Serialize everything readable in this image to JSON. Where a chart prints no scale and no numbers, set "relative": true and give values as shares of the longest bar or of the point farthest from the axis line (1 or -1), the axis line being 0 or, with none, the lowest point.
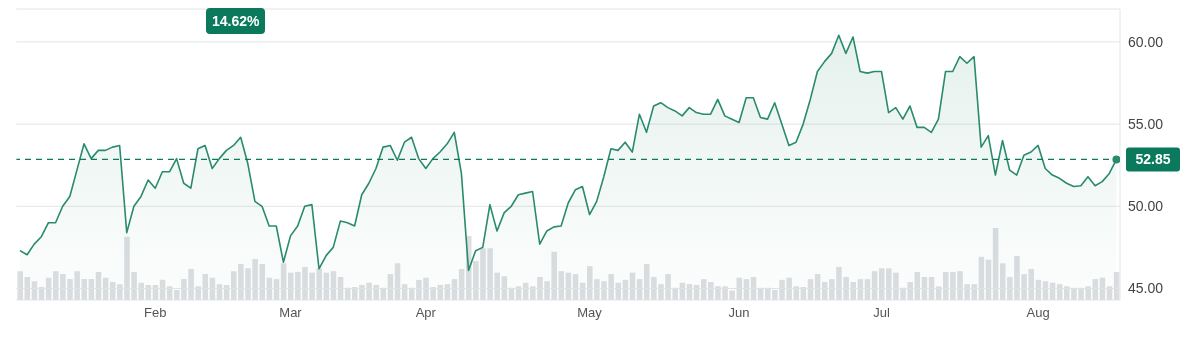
{
  "chart_data": [
    {
      "type": "area",
      "categories": [
        null,
        null,
        null,
        null,
        null,
        null,
        null,
        null,
        null,
        null,
        null,
        null,
        null,
        null,
        null,
        null,
        null,
        null,
        null,
        "Feb",
        null,
        null,
        null,
        null,
        null,
        null,
        null,
        null,
        null,
        null,
        null,
        null,
        null,
        null,
        null,
        null,
        null,
        null,
        "Mar",
        null,
        null,
        null,
        null,
        null,
        null,
        null,
        null,
        null,
        null,
        null,
        null,
        null,
        null,
        null,
        null,
        null,
        null,
        "Apr",
        null,
        null,
        null,
        null,
        null,
        null,
        null,
        null,
        null,
        null,
        null,
        null,
        null,
        null,
        null,
        null,
        null,
        null,
        null,
        null,
        null,
        null,
        "May",
        null,
        null,
        null,
        null,
        null,
        null,
        null,
        null,
        null,
        null,
        null,
        null,
        null,
        null,
        null,
        null,
        null,
        null,
        null,
        null,
        "Jun",
        null,
        null,
        null,
        null,
        null,
        null,
        null,
        null,
        null,
        null,
        null,
        null,
        null,
        null,
        null,
        null,
        null,
        null,
        null,
        "Jul",
        null,
        null,
        null,
        null,
        null,
        null,
        null,
        null,
        null,
        null,
        null,
        null,
        null,
        null,
        null,
        null,
        null,
        null,
        null,
        null,
        null,
        "Aug",
        null,
        null,
        null,
        null,
        null,
        null,
        null,
        null,
        null,
        null,
        null
      ],
      "series": [
        {
          "color": "#2a8a6e",
          "values": [
            47.3,
            47.05,
            47.7,
            48.15,
            49.0,
            49.0,
            50.0,
            50.6,
            52.2,
            53.8,
            52.9,
            53.4,
            53.4,
            53.6,
            53.7,
            48.4,
            50.0,
            50.6,
            51.6,
            51.1,
            52.1,
            52.1,
            52.9,
            51.4,
            51.1,
            53.5,
            53.7,
            52.3,
            52.9,
            53.4,
            53.7,
            54.2,
            52.6,
            50.3,
            50.0,
            48.8,
            48.8,
            46.6,
            48.2,
            48.8,
            50.0,
            50.1,
            46.2,
            47.0,
            47.5,
            49.1,
            49.0,
            48.8,
            50.7,
            51.4,
            52.3,
            53.6,
            53.7,
            52.8,
            53.9,
            54.2,
            52.9,
            52.3,
            52.9,
            53.3,
            53.8,
            54.5,
            52.0,
            46.1,
            47.3,
            47.5,
            50.1,
            48.5,
            49.6,
            50.0,
            50.7,
            50.8,
            50.9,
            47.7,
            48.5,
            48.75,
            48.8,
            50.2,
            51.0,
            51.2,
            49.5,
            50.3,
            51.8,
            53.5,
            53.4,
            53.9,
            53.3,
            55.6,
            54.5,
            56.1,
            56.3,
            56.0,
            55.8,
            55.5,
            56.0,
            55.7,
            55.6,
            55.6,
            56.5,
            55.5,
            55.3,
            55.1,
            56.6,
            56.6,
            55.4,
            55.3,
            56.3,
            55.0,
            53.7,
            53.9,
            55.0,
            56.5,
            58.2,
            58.8,
            59.3,
            60.4,
            59.3,
            60.3,
            58.2,
            58.1,
            58.2,
            58.2,
            55.7,
            56.0,
            55.3,
            56.1,
            54.8,
            54.8,
            54.5,
            55.3,
            58.2,
            58.2,
            59.1,
            58.7,
            59.1,
            53.6,
            54.3,
            51.9,
            54.0,
            52.2,
            51.9,
            53.1,
            53.3,
            53.7,
            52.3,
            51.9,
            51.7,
            51.4,
            51.2,
            51.25,
            51.8,
            51.25,
            51.5,
            52.0,
            52.85
          ]
        }
      ],
      "ylim": [
        44.3,
        62
      ],
      "yticks": [
        {
          "value": 45,
          "label": "45.00"
        },
        {
          "value": 50,
          "label": "50.00"
        },
        {
          "value": 55,
          "label": "55.00"
        },
        {
          "value": 60,
          "label": "60.00"
        }
      ],
      "grid": "y",
      "ref_lines": [
        {
          "axis": "y",
          "value": 52.85,
          "label": "52.85",
          "color": "#0b7a5c",
          "line_style": "dashed"
        }
      ],
      "annotations": [
        "14.62%"
      ]
    },
    {
      "type": "bar",
      "relative": true,
      "color": "#dcdee1",
      "categories": [
        null,
        null,
        null,
        null,
        null,
        null,
        null,
        null,
        null,
        null,
        null,
        null,
        null,
        null,
        null,
        null,
        null,
        null,
        null,
        null,
        null,
        null,
        null,
        null,
        null,
        null,
        null,
        null,
        null,
        null,
        null,
        null,
        null,
        null,
        null,
        null,
        null,
        null,
        null,
        null,
        null,
        null,
        null,
        null,
        null,
        null,
        null,
        null,
        null,
        null,
        null,
        null,
        null,
        null,
        null,
        null,
        null,
        null,
        null,
        null,
        null,
        null,
        null,
        null,
        null,
        null,
        null,
        null,
        null,
        null,
        null,
        null,
        null,
        null,
        null,
        null,
        null,
        null,
        null,
        null,
        null,
        null,
        null,
        null,
        null,
        null,
        null,
        null,
        null,
        null,
        null,
        null,
        null,
        null,
        null,
        null,
        null,
        null,
        null,
        null,
        null,
        null,
        null,
        null,
        null,
        null,
        null,
        null,
        null,
        null,
        null,
        null,
        null,
        null,
        null,
        null,
        null,
        null,
        null,
        null,
        null,
        null,
        null,
        null,
        null,
        null,
        null,
        null,
        null,
        null,
        null,
        null,
        null,
        null,
        null,
        null,
        null,
        null,
        null,
        null,
        null,
        null,
        null,
        null,
        null,
        null,
        null,
        null,
        null,
        null,
        null,
        null,
        null,
        null,
        null
      ],
      "values": [
        0.4,
        0.32,
        0.26,
        0.18,
        0.31,
        0.4,
        0.36,
        0.29,
        0.4,
        0.29,
        0.29,
        0.39,
        0.31,
        0.25,
        0.22,
        0.88,
        0.39,
        0.24,
        0.21,
        0.21,
        0.28,
        0.19,
        0.14,
        0.29,
        0.43,
        0.19,
        0.36,
        0.31,
        0.22,
        0.21,
        0.4,
        0.5,
        0.44,
        0.57,
        0.5,
        0.31,
        0.29,
        0.51,
        0.38,
        0.39,
        0.46,
        0.38,
        0.44,
        0.38,
        0.4,
        0.32,
        0.17,
        0.18,
        0.21,
        0.24,
        0.21,
        0.17,
        0.36,
        0.51,
        0.22,
        0.17,
        0.28,
        0.31,
        0.18,
        0.21,
        0.22,
        0.29,
        0.43,
        0.89,
        0.54,
        0.72,
        0.72,
        0.38,
        0.33,
        0.17,
        0.19,
        0.24,
        0.19,
        0.32,
        0.26,
        0.67,
        0.4,
        0.38,
        0.36,
        0.24,
        0.47,
        0.29,
        0.26,
        0.36,
        0.24,
        0.28,
        0.38,
        0.29,
        0.5,
        0.32,
        0.22,
        0.36,
        0.17,
        0.24,
        0.22,
        0.21,
        0.29,
        0.25,
        0.19,
        0.19,
        0.13,
        0.31,
        0.29,
        0.32,
        0.17,
        0.17,
        0.14,
        0.28,
        0.31,
        0.19,
        0.18,
        0.29,
        0.36,
        0.25,
        0.29,
        0.46,
        0.32,
        0.25,
        0.29,
        0.29,
        0.4,
        0.44,
        0.44,
        0.38,
        0.17,
        0.25,
        0.39,
        0.32,
        0.32,
        0.19,
        0.39,
        0.39,
        0.4,
        0.22,
        0.22,
        0.6,
        0.56,
        1,
        0.51,
        0.32,
        0.61,
        0.36,
        0.43,
        0.28,
        0.26,
        0.24,
        0.22,
        0.19,
        0.17,
        0.17,
        0.19,
        0.29,
        0.31,
        0.19,
        0.39
      ]
    }
  ]
}
